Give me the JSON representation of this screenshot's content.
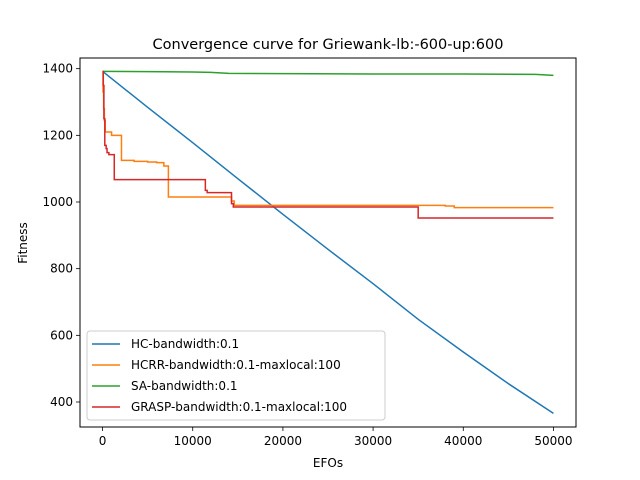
{
  "chart_data": {
    "type": "line",
    "title": "Convergence curve for Griewank-lb:-600-up:600",
    "xlabel": "EFOs",
    "ylabel": "Fitness",
    "xlim": [
      -2500,
      52500
    ],
    "ylim": [
      325,
      1432
    ],
    "xticks": [
      0,
      10000,
      20000,
      30000,
      40000,
      50000
    ],
    "yticks": [
      400,
      600,
      800,
      1000,
      1200,
      1400
    ],
    "grid": false,
    "legend_position": "lower-left",
    "series": [
      {
        "name": "HC-bandwidth:0.1",
        "color": "#1f77b4",
        "x": [
          0,
          5000,
          10000,
          15000,
          20000,
          25000,
          30000,
          35000,
          40000,
          45000,
          50000
        ],
        "y": [
          1392,
          1284,
          1178,
          1070,
          963,
          858,
          755,
          648,
          550,
          455,
          366
        ]
      },
      {
        "name": "HCRR-bandwidth:0.1-maxlocal:100",
        "color": "#ff7f0e",
        "x": [
          0,
          50,
          50,
          120,
          120,
          200,
          200,
          300,
          300,
          1000,
          1000,
          2100,
          2100,
          3500,
          3500,
          5000,
          5000,
          6000,
          6000,
          6800,
          6800,
          7300,
          7300,
          14300,
          14300,
          14600,
          14600,
          38000,
          38000,
          39000,
          39000,
          50000
        ],
        "y": [
          1392,
          1392,
          1330,
          1330,
          1280,
          1280,
          1245,
          1245,
          1210,
          1210,
          1200,
          1200,
          1125,
          1125,
          1122,
          1122,
          1120,
          1120,
          1118,
          1118,
          1108,
          1108,
          1015,
          1015,
          1003,
          1003,
          990,
          990,
          988,
          988,
          983,
          983
        ]
      },
      {
        "name": "SA-bandwidth:0.1",
        "color": "#2ca02c",
        "x": [
          0,
          5000,
          10000,
          12000,
          14000,
          20000,
          30000,
          40000,
          48000,
          50000
        ],
        "y": [
          1392,
          1391,
          1390,
          1389,
          1386,
          1385,
          1384,
          1384,
          1383,
          1380
        ]
      },
      {
        "name": "GRASP-bandwidth:0.1-maxlocal:100",
        "color": "#d62728",
        "x": [
          0,
          80,
          80,
          150,
          150,
          250,
          250,
          400,
          400,
          500,
          500,
          700,
          700,
          1300,
          1300,
          11400,
          11400,
          11600,
          11600,
          14300,
          14300,
          14500,
          14500,
          35000,
          35000,
          50000
        ],
        "y": [
          1392,
          1392,
          1350,
          1350,
          1250,
          1250,
          1170,
          1170,
          1160,
          1160,
          1148,
          1148,
          1142,
          1142,
          1067,
          1067,
          1035,
          1035,
          1028,
          1028,
          995,
          995,
          985,
          985,
          952,
          952
        ]
      }
    ]
  }
}
